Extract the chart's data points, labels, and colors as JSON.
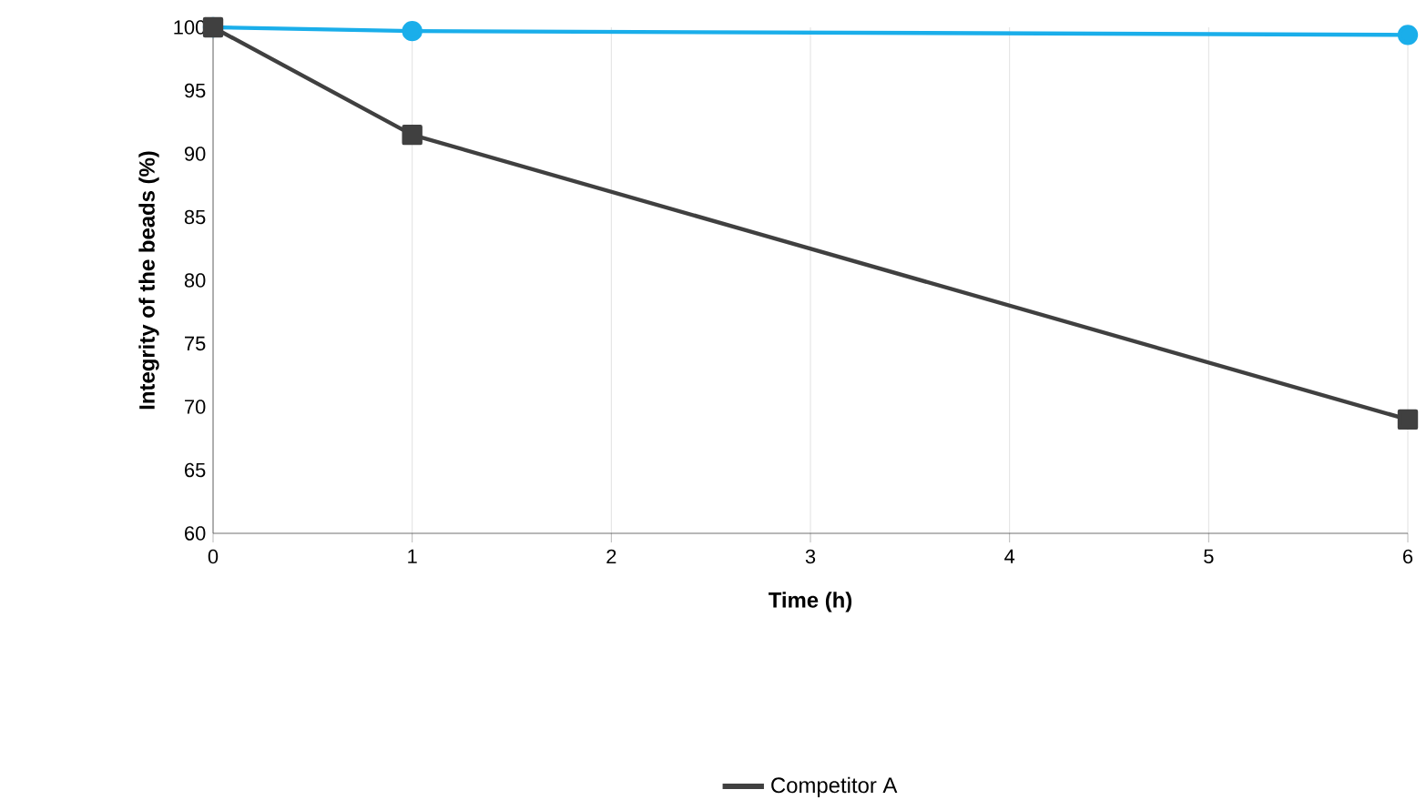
{
  "chart_data": {
    "type": "line",
    "xlabel": "Time (h)",
    "ylabel": "Integrity of the beads (%)",
    "xlim": [
      0,
      6
    ],
    "ylim": [
      60,
      100
    ],
    "xticks": [
      0,
      1,
      2,
      3,
      4,
      5,
      6
    ],
    "yticks": [
      60,
      65,
      70,
      75,
      80,
      85,
      90,
      95,
      100
    ],
    "grid": "x",
    "legend": "bottom",
    "series": [
      {
        "color": "#1aaeea",
        "marker": "circle",
        "x": [
          0,
          1,
          6
        ],
        "values": [
          100,
          99.7,
          99.4
        ]
      },
      {
        "name": "Competitor A",
        "color": "#404040",
        "marker": "square",
        "x": [
          0,
          1,
          6
        ],
        "values": [
          100,
          91.5,
          69
        ]
      }
    ]
  }
}
